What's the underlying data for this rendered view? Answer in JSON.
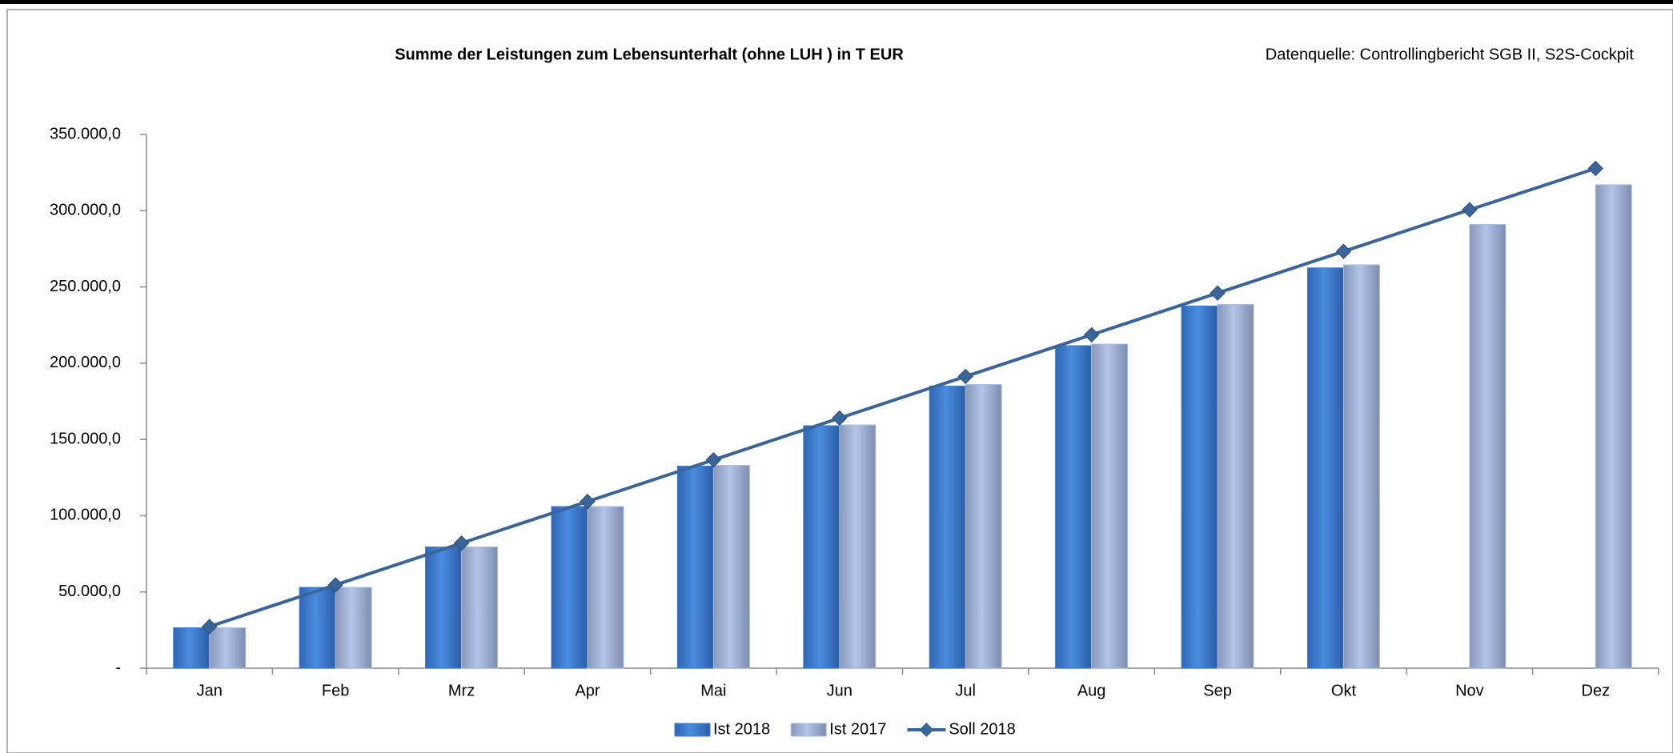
{
  "chart_data": {
    "type": "bar",
    "title": "Summe der Leistungen zum Lebensunterhalt (ohne LUH ) in T EUR",
    "source": "Datenquelle: Controllingbericht SGB II, S2S-Cockpit",
    "categories": [
      "Jan",
      "Feb",
      "Mrz",
      "Apr",
      "Mai",
      "Jun",
      "Jul",
      "Aug",
      "Sep",
      "Okt",
      "Nov",
      "Dez"
    ],
    "series": [
      {
        "name": "Ist 2018",
        "type": "bar",
        "color": "#3d7fd8",
        "values": [
          26500,
          53000,
          79500,
          106000,
          132500,
          159000,
          185000,
          211500,
          237500,
          262500,
          null,
          null
        ]
      },
      {
        "name": "Ist 2017",
        "type": "bar",
        "color": "#a8bde3",
        "values": [
          26500,
          53000,
          79500,
          106000,
          133000,
          159500,
          186000,
          212500,
          238500,
          264500,
          291000,
          317000
        ]
      },
      {
        "name": "Soll 2018",
        "type": "line",
        "color": "#3a6598",
        "values": [
          27300,
          54600,
          82000,
          109300,
          136600,
          164000,
          191300,
          218600,
          246000,
          273300,
          300600,
          327700
        ]
      }
    ],
    "ylim": [
      0,
      350000
    ],
    "yticks": [
      {
        "value": 0,
        "label": "-"
      },
      {
        "value": 50000,
        "label": "50.000,0"
      },
      {
        "value": 100000,
        "label": "100.000,0"
      },
      {
        "value": 150000,
        "label": "150.000,0"
      },
      {
        "value": 200000,
        "label": "200.000,0"
      },
      {
        "value": 250000,
        "label": "250.000,0"
      },
      {
        "value": 300000,
        "label": "300.000,0"
      },
      {
        "value": 350000,
        "label": "350.000,0"
      }
    ],
    "grid": false,
    "legend": "bottom"
  }
}
